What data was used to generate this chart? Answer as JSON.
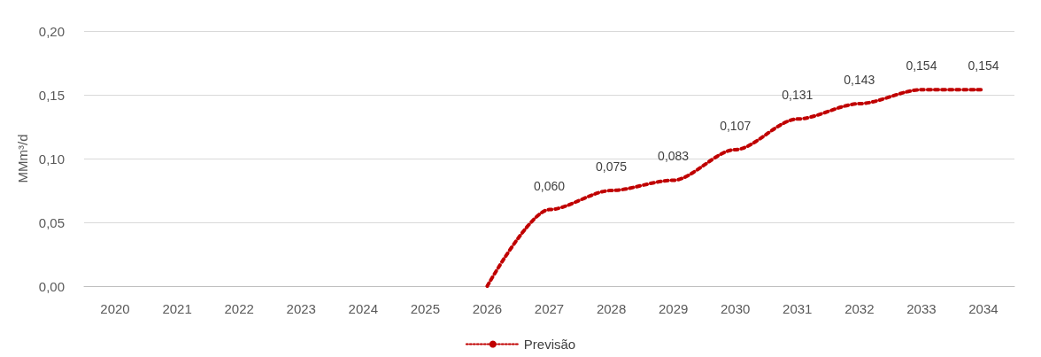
{
  "chart_data": {
    "type": "line",
    "ylabel": "MMm³/d",
    "categories": [
      "2020",
      "2021",
      "2022",
      "2023",
      "2024",
      "2025",
      "2026",
      "2027",
      "2028",
      "2029",
      "2030",
      "2031",
      "2032",
      "2033",
      "2034"
    ],
    "series": [
      {
        "name": "Previsão",
        "color": "#c00000",
        "values": [
          null,
          null,
          null,
          null,
          null,
          null,
          0,
          0.06,
          0.075,
          0.083,
          0.107,
          0.131,
          0.143,
          0.154,
          0.154
        ],
        "value_labels": [
          null,
          null,
          null,
          null,
          null,
          null,
          null,
          "0,060",
          "0,075",
          "0,083",
          "0,107",
          "0,131",
          "0,143",
          "0,154",
          "0,154"
        ]
      }
    ],
    "ylim": [
      0,
      0.2
    ],
    "yticks": [
      {
        "value": 0,
        "label": "0,00"
      },
      {
        "value": 0.05,
        "label": "0,05"
      },
      {
        "value": 0.1,
        "label": "0,10"
      },
      {
        "value": 0.15,
        "label": "0,15"
      },
      {
        "value": 0.2,
        "label": "0,20"
      }
    ],
    "grid": "y",
    "legend": "bottom",
    "line_style": "dotted",
    "marker": "none"
  }
}
